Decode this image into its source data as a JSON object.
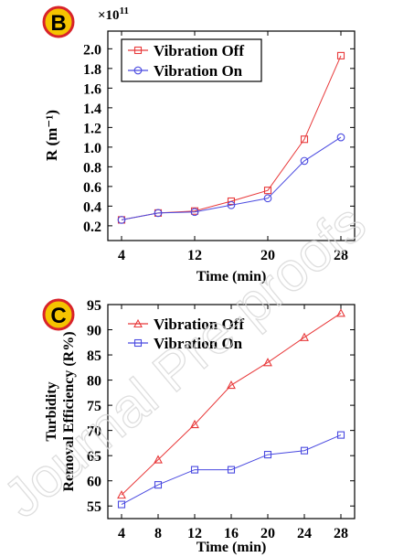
{
  "watermark": "Journal Pre-proofs",
  "colors": {
    "off": "#e8393a",
    "on": "#4a4ae0",
    "badge_fill": "#f5c400",
    "badge_stroke": "#d8232a"
  },
  "chart_data": [
    {
      "panel_label": "B",
      "type": "line",
      "xlabel": "Time (min)",
      "ylabel": "R (m⁻¹)",
      "multiplier": "×10",
      "multiplier_exp": "11",
      "xlim": [
        2.5,
        29.5
      ],
      "ylim": [
        0.05,
        2.18
      ],
      "xticks": [
        4,
        12,
        20,
        28
      ],
      "yticks": [
        0.2,
        0.4,
        0.6,
        0.8,
        1.0,
        1.2,
        1.4,
        1.6,
        1.8,
        2.0
      ],
      "ytick_labels": [
        "0.2",
        "0.4",
        "0.6",
        "0.8",
        "1.0",
        "1.2",
        "1.4",
        "1.6",
        "1.8",
        "2.0"
      ],
      "legend_position": "top-left",
      "x": [
        4,
        8,
        12,
        16,
        20,
        24,
        28
      ],
      "series": [
        {
          "name": "Vibration Off",
          "marker": "square",
          "color": "#e8393a",
          "values": [
            0.26,
            0.33,
            0.35,
            0.45,
            0.56,
            1.08,
            1.93
          ]
        },
        {
          "name": "Vibration On",
          "marker": "circle",
          "color": "#4a4ae0",
          "values": [
            0.26,
            0.33,
            0.34,
            0.41,
            0.48,
            0.86,
            1.1
          ]
        }
      ]
    },
    {
      "panel_label": "C",
      "type": "line",
      "xlabel": "Time (min)",
      "ylabel_line1": "Turbidity",
      "ylabel_line2": "Removal Efficiency (R%)",
      "xlim": [
        2.5,
        29.5
      ],
      "ylim": [
        52.5,
        95
      ],
      "xticks": [
        4,
        8,
        12,
        16,
        20,
        24,
        28
      ],
      "yticks": [
        55,
        60,
        65,
        70,
        75,
        80,
        85,
        90,
        95
      ],
      "ytick_labels": [
        "55",
        "60",
        "65",
        "70",
        "75",
        "80",
        "85",
        "90",
        "95"
      ],
      "legend_position": "top-left",
      "x": [
        4,
        8,
        12,
        16,
        20,
        24,
        28
      ],
      "series": [
        {
          "name": "Vibration Off",
          "marker": "triangle",
          "color": "#e8393a",
          "values": [
            57.2,
            64.2,
            71.2,
            79.0,
            83.5,
            88.5,
            93.3
          ]
        },
        {
          "name": "Vibration On",
          "marker": "square",
          "color": "#4a4ae0",
          "values": [
            55.3,
            59.2,
            62.2,
            62.2,
            65.2,
            66.0,
            69.1
          ]
        }
      ]
    }
  ]
}
